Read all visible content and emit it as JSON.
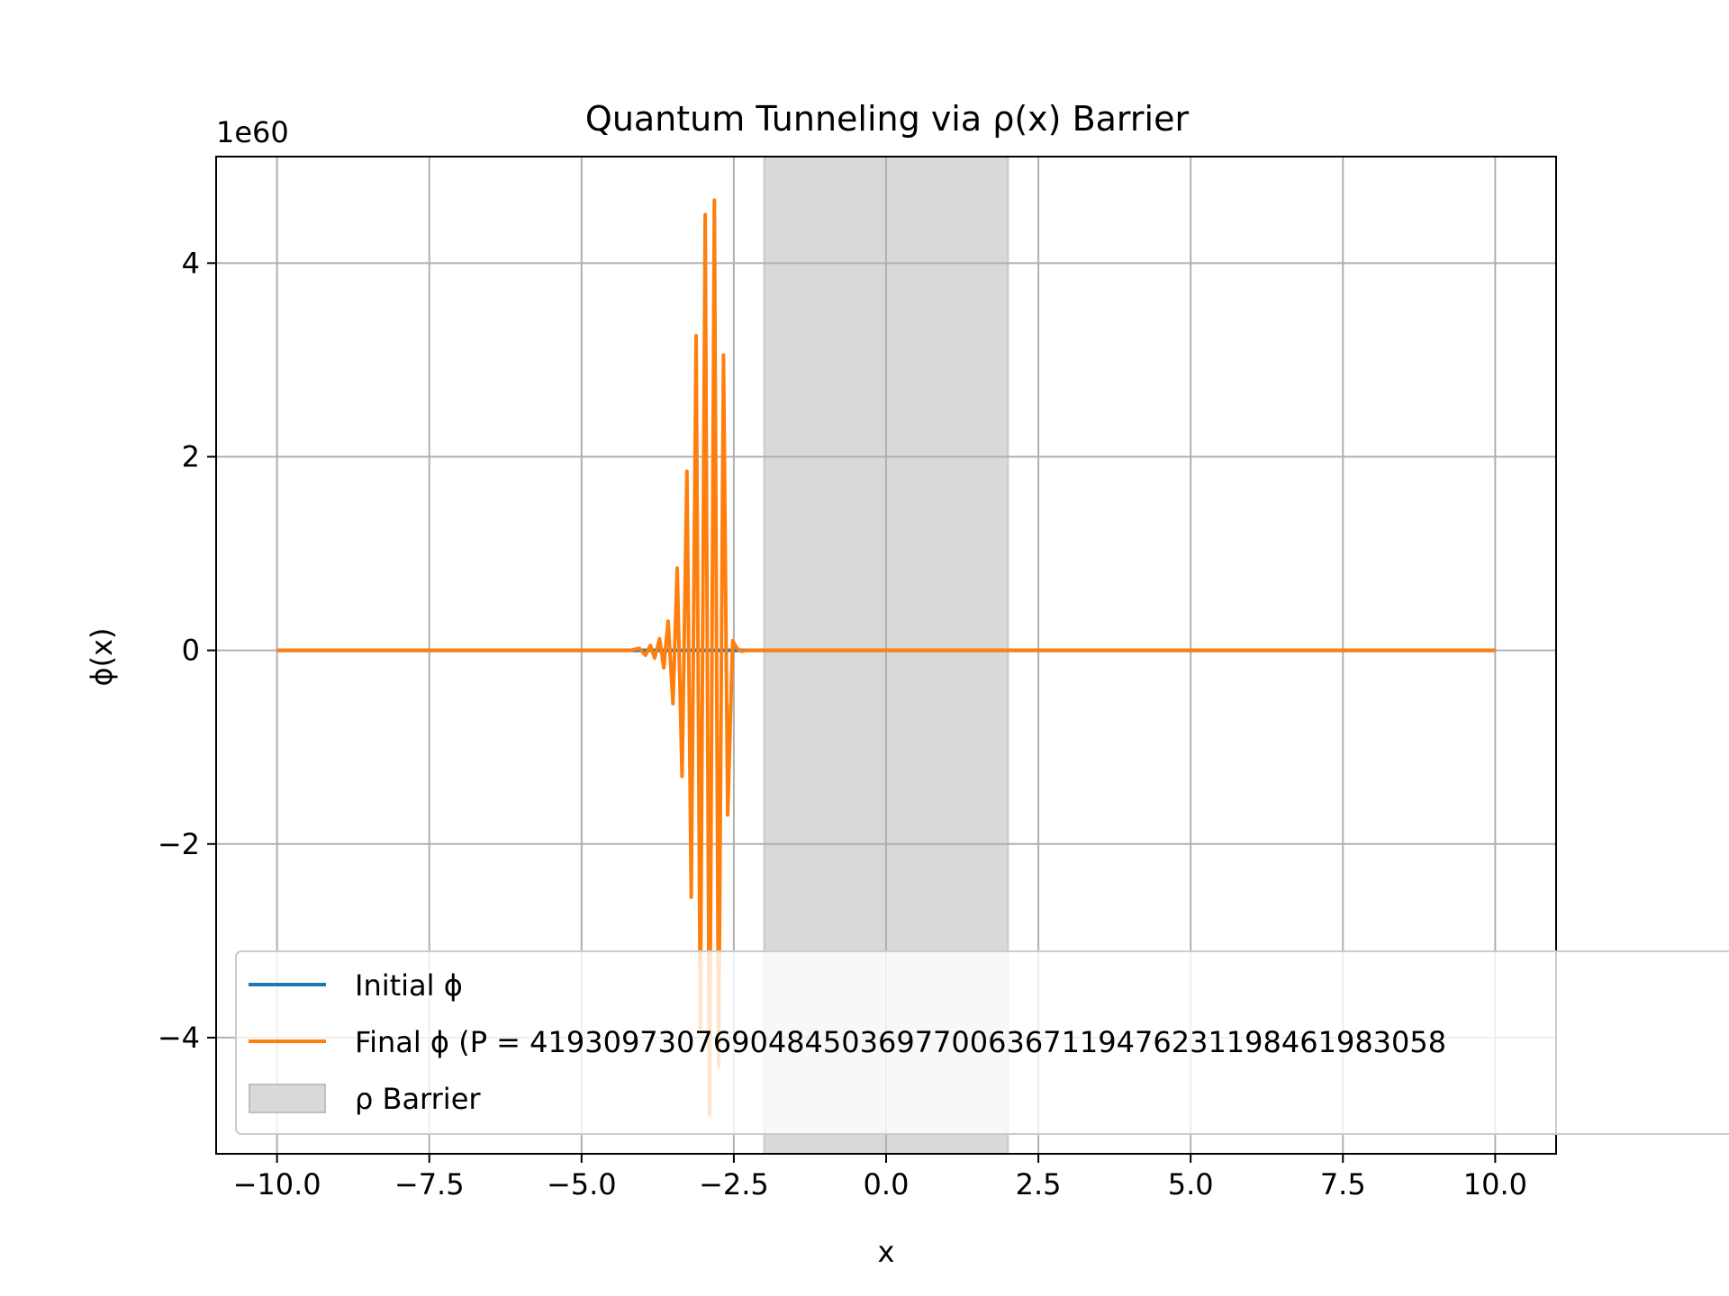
{
  "chart_data": {
    "type": "line",
    "title": "Quantum Tunneling via ρ(x) Barrier",
    "xlabel": "x",
    "ylabel": "ϕ(x)",
    "offset_label": "1e60",
    "xlim": [
      -11,
      11
    ],
    "ylim": [
      -5.2,
      5.1
    ],
    "xticks": [
      -10.0,
      -7.5,
      -5.0,
      -2.5,
      0.0,
      2.5,
      5.0,
      7.5,
      10.0
    ],
    "xtick_labels": [
      "−10.0",
      "−7.5",
      "−5.0",
      "−2.5",
      "0.0",
      "2.5",
      "5.0",
      "7.5",
      "10.0"
    ],
    "yticks": [
      -4,
      -2,
      0,
      2,
      4
    ],
    "ytick_labels": [
      "−4",
      "−2",
      "0",
      "2",
      "4"
    ],
    "y_scale_factor": "1e60",
    "grid": true,
    "legend_position": "lower-left",
    "barrier": {
      "label": "ρ Barrier",
      "x_range": [
        -2.0,
        2.0
      ],
      "color": "#d9d9d9"
    },
    "series": [
      {
        "name": "Initial ϕ",
        "color": "#1f77b4",
        "x": [
          -10.0,
          10.0
        ],
        "y": [
          0,
          0
        ]
      },
      {
        "name": "Final ϕ (P = 41930973076904845036977006367119476231198461983058",
        "color": "#ff7f0e",
        "x": [
          -10.0,
          -4.2,
          -4.05,
          -3.95,
          -3.87,
          -3.8,
          -3.72,
          -3.65,
          -3.58,
          -3.5,
          -3.43,
          -3.35,
          -3.27,
          -3.2,
          -3.12,
          -3.05,
          -2.97,
          -2.9,
          -2.82,
          -2.75,
          -2.67,
          -2.6,
          -2.52,
          -2.45,
          -2.37,
          -2.3,
          -2.22,
          -2.15,
          -2.08,
          -2.0,
          10.0
        ],
        "y": [
          0,
          0,
          0.02,
          -0.05,
          0.05,
          -0.08,
          0.12,
          -0.18,
          0.3,
          -0.55,
          0.85,
          -1.3,
          1.85,
          -2.55,
          3.25,
          -3.9,
          4.5,
          -4.8,
          4.65,
          -4.3,
          3.05,
          -1.7,
          0.1,
          0.02,
          -0.01,
          0,
          0,
          0,
          0,
          0,
          0
        ]
      }
    ]
  }
}
